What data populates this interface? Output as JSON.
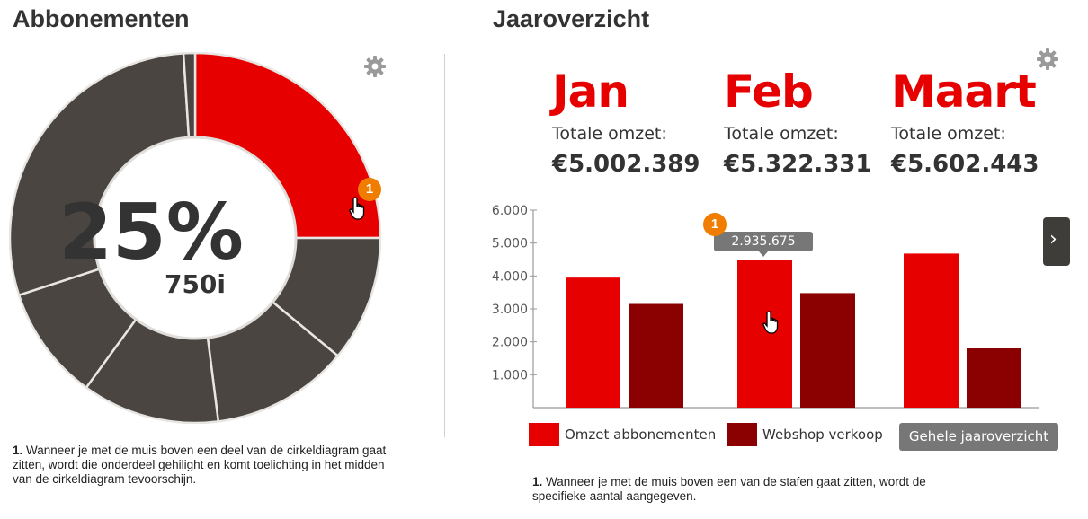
{
  "left_panel": {
    "title": "Abbonementen",
    "center_percent": "25%",
    "center_count": "750i",
    "badge": "1",
    "note_number": "1.",
    "note_text": " Wanneer je met de muis boven een deel van de cirkeldiagram gaat zitten, wordt die onderdeel gehilight en komt toelichting in het midden van de cirkeldiagram tevoorschijn."
  },
  "right_panel": {
    "title": "Jaaroverzicht",
    "months": [
      {
        "name": "Jan",
        "label": "Totale omzet:",
        "value": "€5.002.389"
      },
      {
        "name": "Feb",
        "label": "Totale omzet:",
        "value": "€5.322.331"
      },
      {
        "name": "Maart",
        "label": "Totale omzet:",
        "value": "€5.602.443"
      }
    ],
    "tooltip": "2.935.675",
    "badge": "1",
    "next_icon": "›",
    "legend": [
      "Omzet abbonementen",
      "Webshop verkoop"
    ],
    "yearly_button": "Gehele jaaroverzicht",
    "note_number": "1.",
    "note_text": " Wanneer je met de muis boven een van de stafen gaat zitten, wordt de specifieke aantal aangegeven."
  },
  "colors": {
    "accent_red": "#e60000",
    "dark_red": "#8b0000",
    "dark_segment": "#4a4540",
    "badge_orange": "#f07d00"
  },
  "icons": {
    "settings": "gear-icon",
    "cursor": "hand-pointer-icon",
    "next": "chevron-right-icon"
  },
  "chart_data": [
    {
      "type": "pie",
      "values": [
        25,
        11,
        12,
        12,
        10,
        29,
        1
      ],
      "highlighted_index": 0
    },
    {
      "type": "bar",
      "categories": [
        "Jan",
        "Feb",
        "Maart"
      ],
      "series": [
        {
          "name": "Omzet abbonementen",
          "values": [
            3950,
            4480,
            4680
          ]
        },
        {
          "name": "Webshop verkoop",
          "values": [
            3150,
            3480,
            1800
          ]
        }
      ],
      "yticks": [
        "1.000",
        "2.000",
        "3.000",
        "4.000",
        "5.000",
        "6.000"
      ],
      "ylim": [
        0,
        6000
      ],
      "legend_position": "bottom"
    }
  ]
}
